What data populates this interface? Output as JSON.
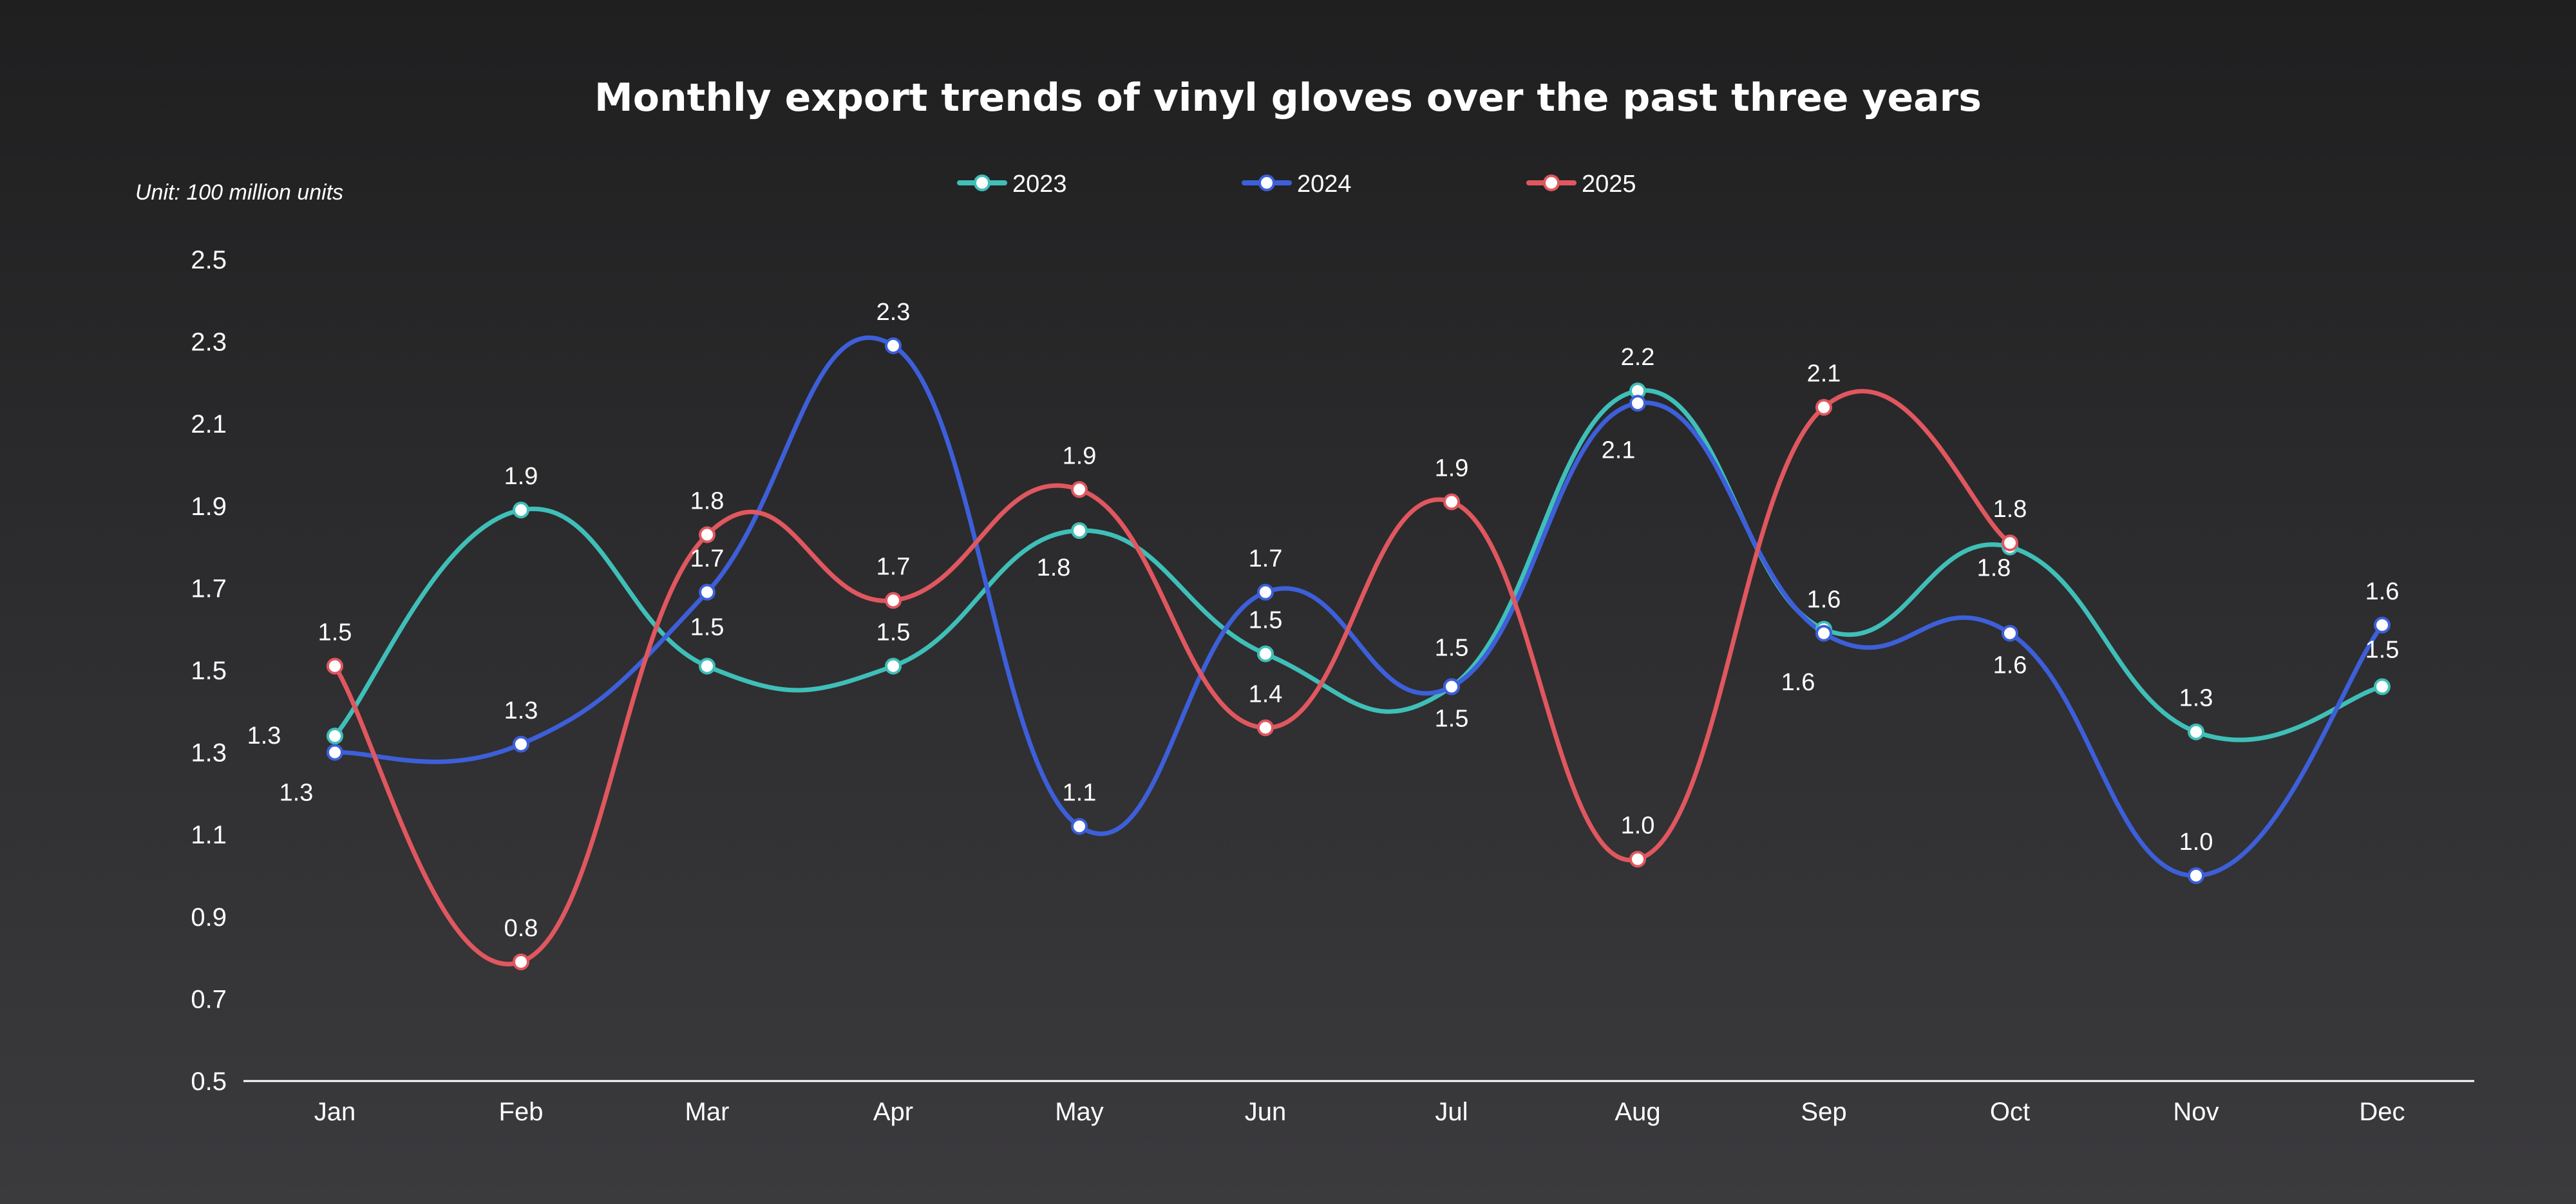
{
  "chart_data": {
    "type": "line",
    "title": "Monthly export trends of vinyl gloves over the past three years",
    "unit_label": "Unit: 100 million units",
    "categories": [
      "Jan",
      "Feb",
      "Mar",
      "Apr",
      "May",
      "Jun",
      "Jul",
      "Aug",
      "Sep",
      "Oct",
      "Nov",
      "Dec"
    ],
    "ylim": [
      0.5,
      2.5
    ],
    "yticks": [
      "0.5",
      "0.7",
      "0.9",
      "1.1",
      "1.3",
      "1.5",
      "1.7",
      "1.9",
      "2.1",
      "2.3",
      "2.5"
    ],
    "grid": false,
    "smooth": true,
    "legend_position": "top-center",
    "series": [
      {
        "name": "2023",
        "color": "#3fbfb8",
        "values": [
          1.34,
          1.89,
          1.51,
          1.51,
          1.84,
          1.54,
          1.46,
          2.18,
          1.6,
          1.8,
          1.35,
          1.46
        ],
        "labels": [
          "1.3",
          "1.9",
          "1.5",
          "1.5",
          "1.8",
          "1.5",
          "1.5",
          "2.2",
          "1.6",
          "1.8",
          "1.3",
          "1.5"
        ]
      },
      {
        "name": "2024",
        "color": "#3d5fd9",
        "values": [
          1.3,
          1.32,
          1.69,
          2.29,
          1.12,
          1.69,
          1.46,
          2.15,
          1.59,
          1.59,
          1.0,
          1.61
        ],
        "labels": [
          "1.3",
          "1.3",
          "1.7",
          "2.3",
          "1.1",
          "1.7",
          "1.5",
          "2.1",
          "1.6",
          "1.6",
          "1.0",
          "1.6"
        ]
      },
      {
        "name": "2025",
        "color": "#e0575f",
        "values": [
          1.51,
          0.79,
          1.83,
          1.67,
          1.94,
          1.36,
          1.91,
          1.04,
          2.14,
          1.81,
          null,
          null
        ],
        "labels": [
          "1.5",
          "0.8",
          "1.8",
          "1.7",
          "1.9",
          "1.4",
          "1.9",
          "1.0",
          "2.1",
          "1.8",
          null,
          null
        ]
      }
    ]
  }
}
